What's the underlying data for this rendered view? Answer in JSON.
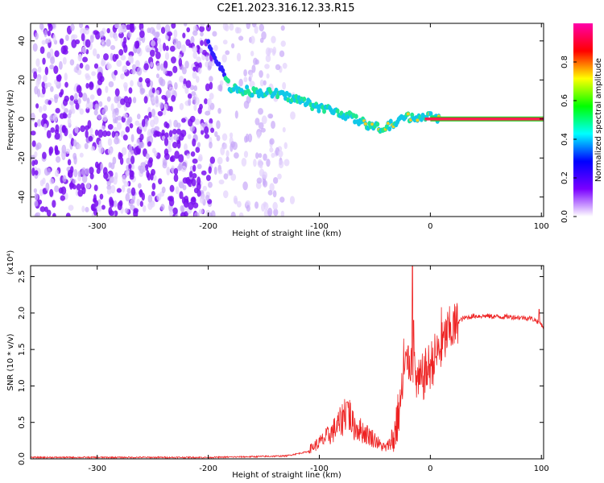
{
  "title": "C2E1.2023.316.12.33.R15",
  "chart_data": [
    {
      "type": "heatmap",
      "xlabel": "Height of straight line (km)",
      "ylabel": "Frequency (Hz)",
      "xlim": [
        -360,
        102
      ],
      "ylim": [
        -50,
        49
      ],
      "x_ticks": [
        -300,
        -200,
        -100,
        0,
        100
      ],
      "y_ticks": [
        -40,
        -20,
        0,
        20,
        40
      ],
      "colorbar": {
        "label": "Normalized spectral amplitude",
        "range": [
          0.0,
          1.0
        ],
        "ticks": [
          0.0,
          0.2,
          0.4,
          0.6,
          0.8
        ],
        "colors": [
          "#ffffff",
          "#7a00ff",
          "#0000ff",
          "#00ffff",
          "#00ff00",
          "#ffff00",
          "#ff0000",
          "#ff00aa"
        ]
      },
      "ridge": {
        "x": [
          -200,
          -180,
          -160,
          -140,
          -120,
          -100,
          -80,
          -60,
          -45,
          -35,
          -20,
          -10,
          0,
          10,
          100
        ],
        "y": [
          38,
          16,
          14,
          13,
          10,
          6,
          3,
          -2,
          -5,
          -3,
          1,
          1,
          1,
          0,
          0
        ]
      }
    },
    {
      "type": "line",
      "xlabel": "Height of straight line (km)",
      "ylabel": "SNR (10 * v/v)",
      "y_multiplier": "(x10⁴)",
      "xlim": [
        -360,
        102
      ],
      "ylim": [
        0,
        2.65
      ],
      "x_ticks": [
        -300,
        -200,
        -100,
        0,
        100
      ],
      "y_ticks": [
        0.0,
        0.5,
        1.0,
        1.5,
        2.0,
        2.5
      ],
      "series_color": "#ee2222",
      "envelope": {
        "x": [
          -360,
          -250,
          -200,
          -160,
          -130,
          -110,
          -100,
          -90,
          -80,
          -75,
          -70,
          -60,
          -50,
          -45,
          -40,
          -35,
          -30,
          -28,
          -25,
          -22,
          -20,
          -18,
          -16,
          -14,
          -12,
          -10,
          -5,
          0,
          5,
          10,
          15,
          20,
          25,
          30,
          40,
          50,
          60,
          70,
          80,
          90,
          95,
          100,
          102
        ],
        "y": [
          0.02,
          0.02,
          0.02,
          0.03,
          0.04,
          0.1,
          0.18,
          0.28,
          0.42,
          0.6,
          0.38,
          0.3,
          0.22,
          0.15,
          0.12,
          0.2,
          0.55,
          0.7,
          1.0,
          1.3,
          1.35,
          1.4,
          1.28,
          1.18,
          1.1,
          1.05,
          1.2,
          1.32,
          1.45,
          1.55,
          1.75,
          1.82,
          1.88,
          1.93,
          1.96,
          1.96,
          1.95,
          1.95,
          1.94,
          1.93,
          1.9,
          1.85,
          1.8
        ]
      },
      "spikes": [
        {
          "x": -75,
          "y": 0.78
        },
        {
          "x": -24,
          "y": 1.65
        },
        {
          "x": -20,
          "y": 1.55
        },
        {
          "x": -16,
          "y": 2.65
        },
        {
          "x": -15,
          "y": 1.9
        },
        {
          "x": 10,
          "y": 2.08
        },
        {
          "x": 98,
          "y": 2.05
        }
      ]
    }
  ]
}
